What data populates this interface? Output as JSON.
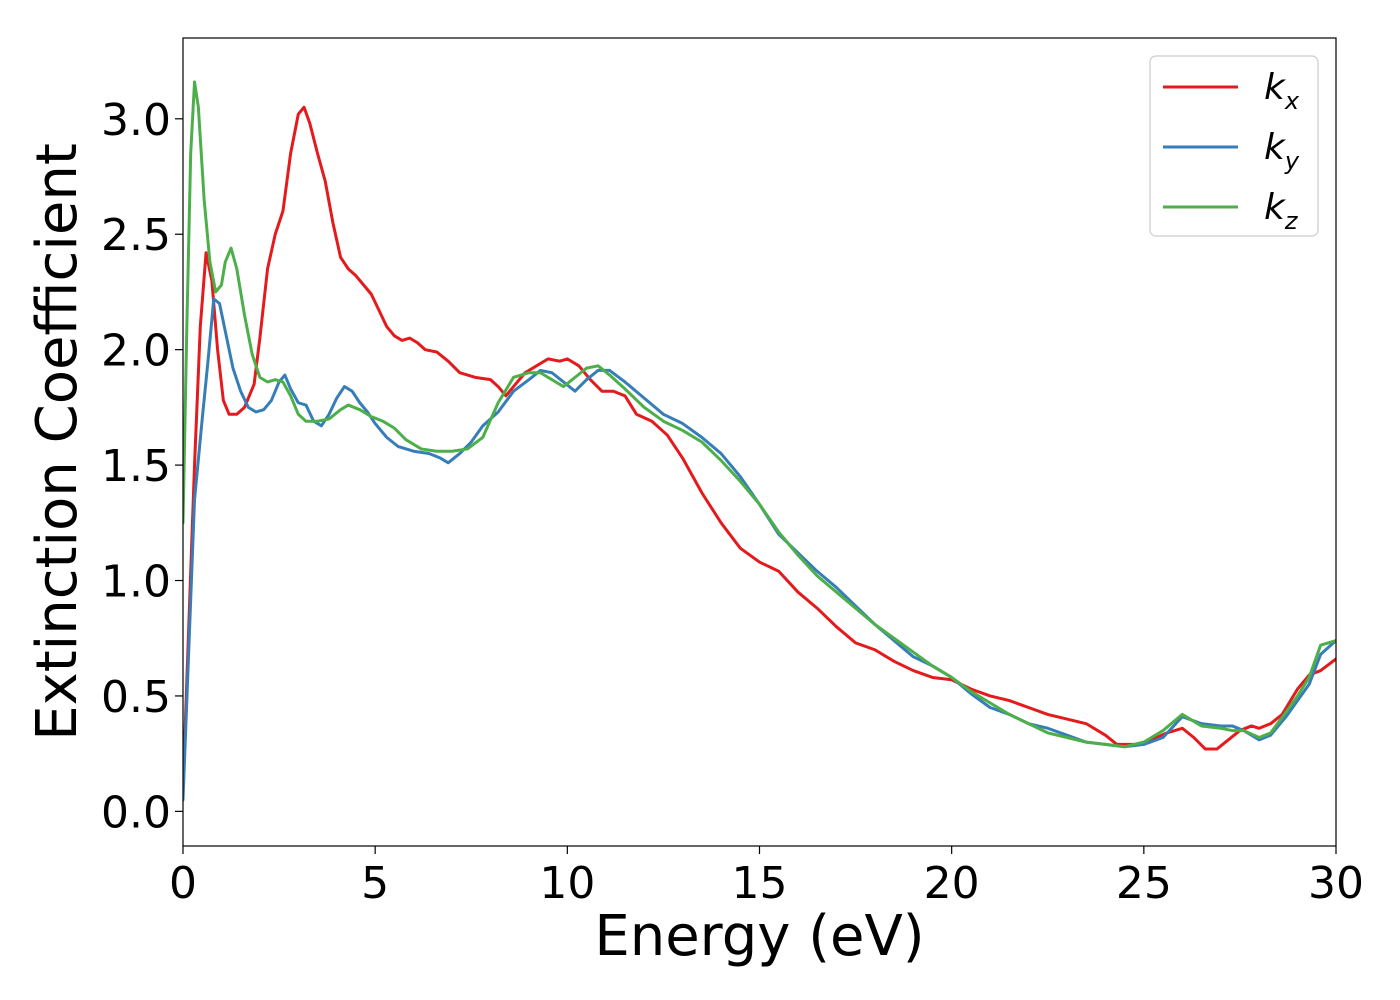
{
  "chart_data": {
    "type": "line",
    "title": "",
    "xlabel": "Energy (eV)",
    "ylabel": "Extinction Coefficient",
    "xlim": [
      0,
      30
    ],
    "ylim": [
      -0.15,
      3.35
    ],
    "xticks": [
      0,
      5,
      10,
      15,
      20,
      25,
      30
    ],
    "yticks": [
      0.0,
      0.5,
      1.0,
      1.5,
      2.0,
      2.5,
      3.0
    ],
    "xtick_labels": [
      "0",
      "5",
      "10",
      "15",
      "20",
      "25",
      "30"
    ],
    "ytick_labels": [
      "0.0",
      "0.5",
      "1.0",
      "1.5",
      "2.0",
      "2.5",
      "3.0"
    ],
    "grid": false,
    "legend_position": "top-right",
    "series": [
      {
        "name": "k_x",
        "label_base": "k",
        "label_sub": "x",
        "color": "#e41a1c",
        "points": [
          [
            0,
            0.1
          ],
          [
            0.15,
            0.8
          ],
          [
            0.3,
            1.5
          ],
          [
            0.45,
            2.1
          ],
          [
            0.6,
            2.42
          ],
          [
            0.75,
            2.3
          ],
          [
            0.9,
            2.0
          ],
          [
            1.05,
            1.78
          ],
          [
            1.2,
            1.72
          ],
          [
            1.4,
            1.72
          ],
          [
            1.6,
            1.75
          ],
          [
            1.85,
            1.85
          ],
          [
            2.0,
            2.05
          ],
          [
            2.2,
            2.35
          ],
          [
            2.4,
            2.5
          ],
          [
            2.6,
            2.6
          ],
          [
            2.8,
            2.85
          ],
          [
            3.0,
            3.02
          ],
          [
            3.15,
            3.05
          ],
          [
            3.3,
            2.98
          ],
          [
            3.5,
            2.85
          ],
          [
            3.7,
            2.73
          ],
          [
            3.9,
            2.55
          ],
          [
            4.1,
            2.4
          ],
          [
            4.3,
            2.35
          ],
          [
            4.5,
            2.32
          ],
          [
            4.7,
            2.28
          ],
          [
            4.9,
            2.24
          ],
          [
            5.1,
            2.17
          ],
          [
            5.3,
            2.1
          ],
          [
            5.5,
            2.06
          ],
          [
            5.7,
            2.04
          ],
          [
            5.9,
            2.05
          ],
          [
            6.1,
            2.03
          ],
          [
            6.3,
            2.0
          ],
          [
            6.6,
            1.99
          ],
          [
            6.9,
            1.95
          ],
          [
            7.2,
            1.9
          ],
          [
            7.6,
            1.88
          ],
          [
            8.0,
            1.87
          ],
          [
            8.2,
            1.84
          ],
          [
            8.4,
            1.8
          ],
          [
            8.6,
            1.84
          ],
          [
            8.9,
            1.9
          ],
          [
            9.2,
            1.93
          ],
          [
            9.5,
            1.96
          ],
          [
            9.8,
            1.95
          ],
          [
            10.0,
            1.96
          ],
          [
            10.3,
            1.93
          ],
          [
            10.6,
            1.87
          ],
          [
            10.9,
            1.82
          ],
          [
            11.2,
            1.82
          ],
          [
            11.5,
            1.8
          ],
          [
            11.8,
            1.72
          ],
          [
            12.2,
            1.69
          ],
          [
            12.6,
            1.63
          ],
          [
            13.0,
            1.53
          ],
          [
            13.5,
            1.38
          ],
          [
            14.0,
            1.25
          ],
          [
            14.5,
            1.14
          ],
          [
            15.0,
            1.08
          ],
          [
            15.5,
            1.04
          ],
          [
            16.0,
            0.95
          ],
          [
            16.5,
            0.88
          ],
          [
            17.0,
            0.8
          ],
          [
            17.5,
            0.73
          ],
          [
            18.0,
            0.7
          ],
          [
            18.5,
            0.65
          ],
          [
            19.0,
            0.61
          ],
          [
            19.5,
            0.58
          ],
          [
            20.0,
            0.57
          ],
          [
            20.5,
            0.53
          ],
          [
            21.0,
            0.5
          ],
          [
            21.5,
            0.48
          ],
          [
            22.0,
            0.45
          ],
          [
            22.5,
            0.42
          ],
          [
            23.0,
            0.4
          ],
          [
            23.5,
            0.38
          ],
          [
            24.0,
            0.33
          ],
          [
            24.3,
            0.29
          ],
          [
            24.8,
            0.29
          ],
          [
            25.2,
            0.31
          ],
          [
            25.6,
            0.34
          ],
          [
            26.0,
            0.36
          ],
          [
            26.3,
            0.32
          ],
          [
            26.6,
            0.27
          ],
          [
            26.9,
            0.27
          ],
          [
            27.2,
            0.31
          ],
          [
            27.5,
            0.35
          ],
          [
            27.8,
            0.37
          ],
          [
            28.0,
            0.36
          ],
          [
            28.3,
            0.38
          ],
          [
            28.6,
            0.42
          ],
          [
            29.0,
            0.53
          ],
          [
            29.3,
            0.59
          ],
          [
            29.6,
            0.61
          ],
          [
            30.0,
            0.66
          ]
        ]
      },
      {
        "name": "k_y",
        "label_base": "k",
        "label_sub": "y",
        "color": "#377eb8",
        "points": [
          [
            0,
            0.05
          ],
          [
            0.15,
            0.7
          ],
          [
            0.3,
            1.35
          ],
          [
            0.5,
            1.7
          ],
          [
            0.65,
            1.95
          ],
          [
            0.8,
            2.22
          ],
          [
            0.95,
            2.2
          ],
          [
            1.1,
            2.08
          ],
          [
            1.3,
            1.92
          ],
          [
            1.5,
            1.82
          ],
          [
            1.7,
            1.75
          ],
          [
            1.9,
            1.73
          ],
          [
            2.1,
            1.74
          ],
          [
            2.3,
            1.78
          ],
          [
            2.5,
            1.86
          ],
          [
            2.65,
            1.89
          ],
          [
            2.8,
            1.83
          ],
          [
            3.0,
            1.77
          ],
          [
            3.2,
            1.76
          ],
          [
            3.4,
            1.69
          ],
          [
            3.6,
            1.67
          ],
          [
            3.8,
            1.72
          ],
          [
            4.0,
            1.79
          ],
          [
            4.2,
            1.84
          ],
          [
            4.4,
            1.82
          ],
          [
            4.6,
            1.77
          ],
          [
            4.8,
            1.73
          ],
          [
            5.0,
            1.68
          ],
          [
            5.3,
            1.62
          ],
          [
            5.6,
            1.58
          ],
          [
            6.0,
            1.56
          ],
          [
            6.4,
            1.55
          ],
          [
            6.7,
            1.53
          ],
          [
            6.9,
            1.51
          ],
          [
            7.2,
            1.55
          ],
          [
            7.5,
            1.6
          ],
          [
            7.8,
            1.67
          ],
          [
            8.2,
            1.73
          ],
          [
            8.6,
            1.82
          ],
          [
            9.0,
            1.87
          ],
          [
            9.3,
            1.91
          ],
          [
            9.6,
            1.9
          ],
          [
            9.9,
            1.86
          ],
          [
            10.2,
            1.82
          ],
          [
            10.5,
            1.87
          ],
          [
            10.8,
            1.91
          ],
          [
            11.1,
            1.91
          ],
          [
            11.5,
            1.86
          ],
          [
            12.0,
            1.79
          ],
          [
            12.5,
            1.72
          ],
          [
            13.0,
            1.68
          ],
          [
            13.5,
            1.62
          ],
          [
            14.0,
            1.55
          ],
          [
            14.5,
            1.45
          ],
          [
            15.0,
            1.33
          ],
          [
            15.5,
            1.2
          ],
          [
            16.0,
            1.12
          ],
          [
            16.5,
            1.04
          ],
          [
            17.0,
            0.97
          ],
          [
            17.5,
            0.89
          ],
          [
            18.0,
            0.81
          ],
          [
            18.5,
            0.74
          ],
          [
            19.0,
            0.67
          ],
          [
            19.5,
            0.63
          ],
          [
            20.0,
            0.58
          ],
          [
            20.5,
            0.51
          ],
          [
            21.0,
            0.45
          ],
          [
            21.5,
            0.42
          ],
          [
            22.0,
            0.38
          ],
          [
            22.5,
            0.36
          ],
          [
            23.0,
            0.33
          ],
          [
            23.5,
            0.3
          ],
          [
            24.0,
            0.29
          ],
          [
            24.5,
            0.28
          ],
          [
            25.0,
            0.29
          ],
          [
            25.5,
            0.32
          ],
          [
            26.0,
            0.41
          ],
          [
            26.5,
            0.38
          ],
          [
            27.0,
            0.37
          ],
          [
            27.3,
            0.37
          ],
          [
            27.6,
            0.35
          ],
          [
            28.0,
            0.31
          ],
          [
            28.3,
            0.33
          ],
          [
            28.7,
            0.41
          ],
          [
            29.0,
            0.48
          ],
          [
            29.3,
            0.55
          ],
          [
            29.6,
            0.68
          ],
          [
            30.0,
            0.74
          ]
        ]
      },
      {
        "name": "k_z",
        "label_base": "k",
        "label_sub": "z",
        "color": "#4daf4a",
        "points": [
          [
            0,
            1.25
          ],
          [
            0.1,
            2.1
          ],
          [
            0.2,
            2.85
          ],
          [
            0.3,
            3.16
          ],
          [
            0.4,
            3.05
          ],
          [
            0.55,
            2.65
          ],
          [
            0.7,
            2.38
          ],
          [
            0.85,
            2.25
          ],
          [
            1.0,
            2.28
          ],
          [
            1.1,
            2.38
          ],
          [
            1.25,
            2.44
          ],
          [
            1.4,
            2.35
          ],
          [
            1.6,
            2.15
          ],
          [
            1.8,
            1.98
          ],
          [
            2.0,
            1.88
          ],
          [
            2.2,
            1.86
          ],
          [
            2.4,
            1.87
          ],
          [
            2.6,
            1.86
          ],
          [
            2.8,
            1.8
          ],
          [
            3.0,
            1.72
          ],
          [
            3.2,
            1.69
          ],
          [
            3.5,
            1.69
          ],
          [
            3.8,
            1.7
          ],
          [
            4.1,
            1.74
          ],
          [
            4.3,
            1.76
          ],
          [
            4.6,
            1.74
          ],
          [
            4.9,
            1.71
          ],
          [
            5.2,
            1.69
          ],
          [
            5.5,
            1.66
          ],
          [
            5.8,
            1.61
          ],
          [
            6.2,
            1.57
          ],
          [
            6.6,
            1.56
          ],
          [
            7.0,
            1.56
          ],
          [
            7.4,
            1.57
          ],
          [
            7.8,
            1.62
          ],
          [
            8.2,
            1.77
          ],
          [
            8.6,
            1.88
          ],
          [
            9.0,
            1.9
          ],
          [
            9.3,
            1.9
          ],
          [
            9.6,
            1.87
          ],
          [
            9.9,
            1.84
          ],
          [
            10.2,
            1.88
          ],
          [
            10.5,
            1.92
          ],
          [
            10.8,
            1.93
          ],
          [
            11.1,
            1.89
          ],
          [
            11.5,
            1.83
          ],
          [
            12.0,
            1.75
          ],
          [
            12.5,
            1.69
          ],
          [
            13.0,
            1.65
          ],
          [
            13.5,
            1.6
          ],
          [
            14.0,
            1.52
          ],
          [
            14.5,
            1.43
          ],
          [
            15.0,
            1.33
          ],
          [
            15.5,
            1.21
          ],
          [
            16.0,
            1.11
          ],
          [
            16.5,
            1.02
          ],
          [
            17.0,
            0.95
          ],
          [
            17.5,
            0.88
          ],
          [
            18.0,
            0.81
          ],
          [
            18.5,
            0.75
          ],
          [
            19.0,
            0.69
          ],
          [
            19.5,
            0.63
          ],
          [
            20.0,
            0.58
          ],
          [
            20.5,
            0.52
          ],
          [
            21.0,
            0.47
          ],
          [
            21.5,
            0.42
          ],
          [
            22.0,
            0.38
          ],
          [
            22.5,
            0.34
          ],
          [
            23.0,
            0.32
          ],
          [
            23.5,
            0.3
          ],
          [
            24.0,
            0.29
          ],
          [
            24.5,
            0.28
          ],
          [
            25.0,
            0.3
          ],
          [
            25.5,
            0.35
          ],
          [
            26.0,
            0.42
          ],
          [
            26.5,
            0.37
          ],
          [
            27.0,
            0.36
          ],
          [
            27.3,
            0.35
          ],
          [
            27.6,
            0.35
          ],
          [
            28.0,
            0.32
          ],
          [
            28.3,
            0.34
          ],
          [
            28.7,
            0.43
          ],
          [
            29.0,
            0.5
          ],
          [
            29.3,
            0.58
          ],
          [
            29.6,
            0.72
          ],
          [
            30.0,
            0.74
          ]
        ]
      }
    ]
  }
}
